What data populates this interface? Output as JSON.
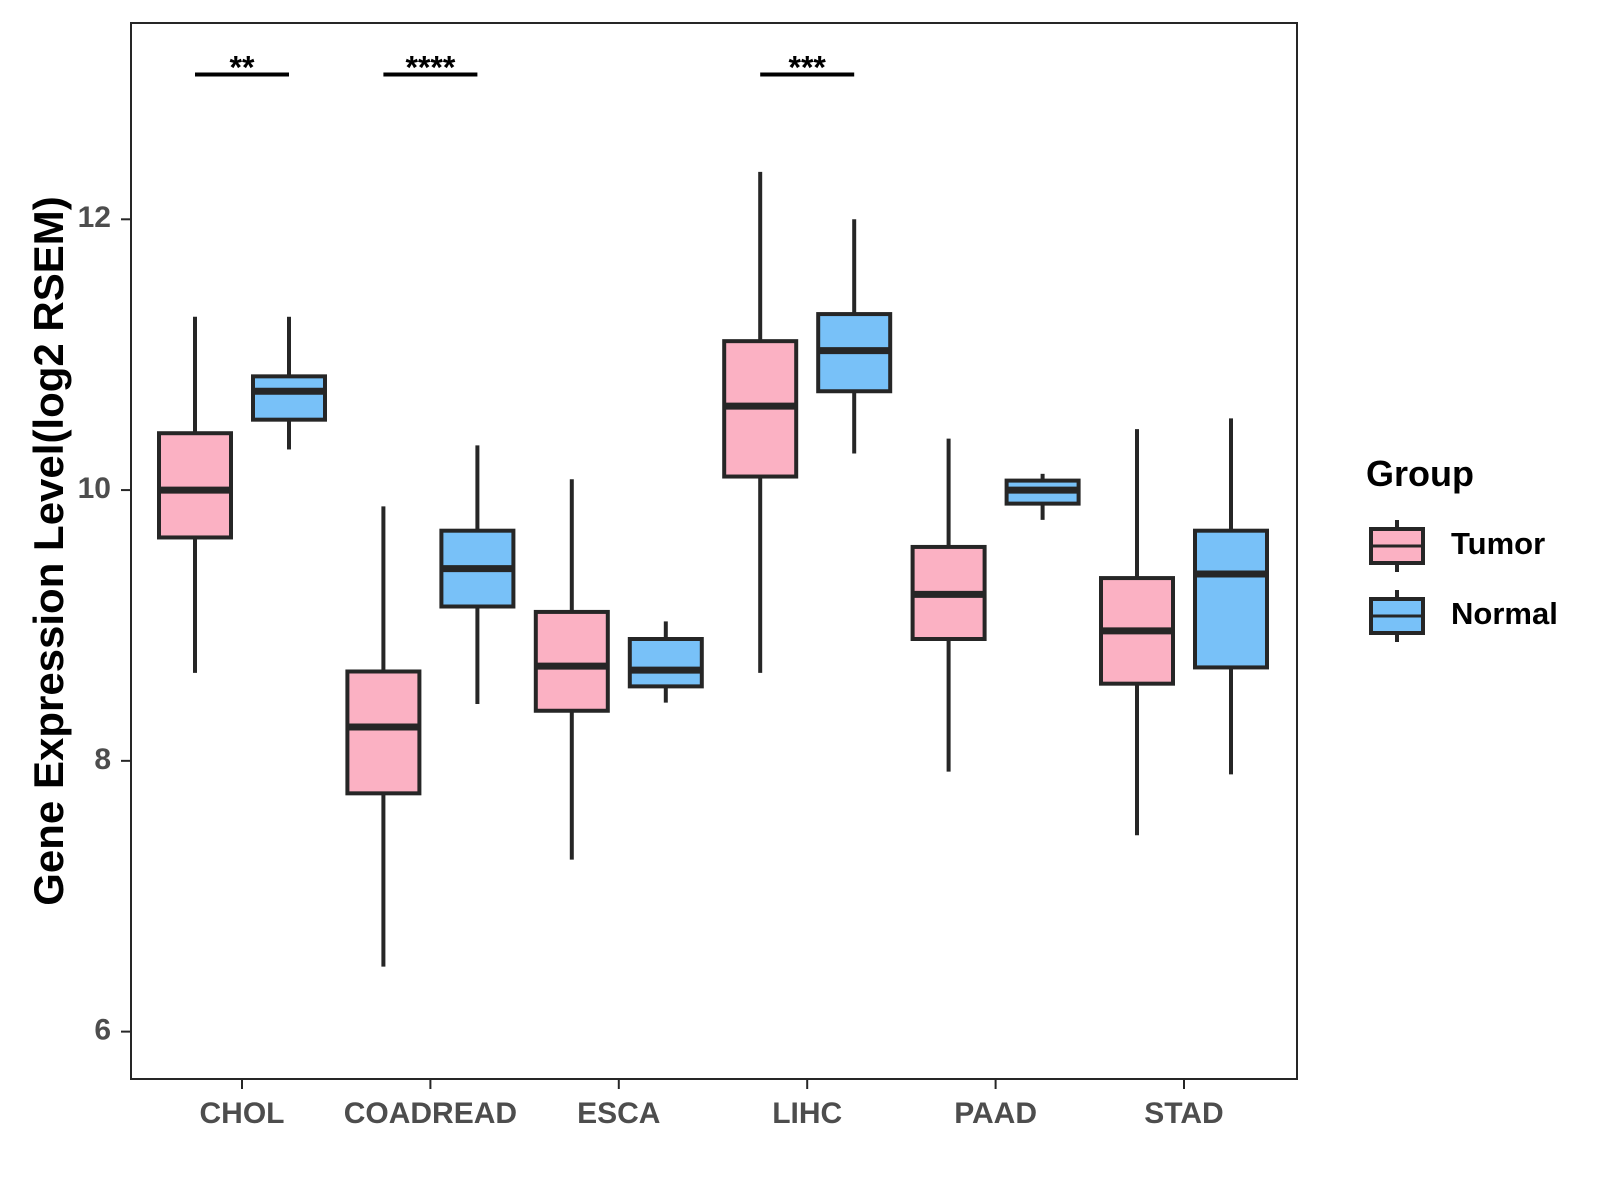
{
  "chart_data": {
    "type": "boxplot",
    "title": "",
    "xlabel": "",
    "ylabel": "Gene Expression Level(log2 RSEM)",
    "ylim": [
      5.65,
      13.45
    ],
    "yticks": [
      6,
      8,
      10,
      12
    ],
    "ytick_labels": [
      "6",
      "8",
      "10",
      "12"
    ],
    "grid": false,
    "categories": [
      "CHOL",
      "COADREAD",
      "ESCA",
      "LIHC",
      "PAAD",
      "STAD"
    ],
    "legend": {
      "title": "Group",
      "position": "right",
      "entries": [
        "Tumor",
        "Normal"
      ]
    },
    "colors": {
      "Tumor": "#FBB1C3",
      "Normal": "#78C1F8",
      "outline": "#262626"
    },
    "series": [
      {
        "name": "Tumor",
        "boxes": [
          {
            "category": "CHOL",
            "whisker_low": 8.65,
            "q1": 9.65,
            "median": 10.0,
            "q3": 10.42,
            "whisker_high": 11.28
          },
          {
            "category": "COADREAD",
            "whisker_low": 6.48,
            "q1": 7.76,
            "median": 8.25,
            "q3": 8.66,
            "whisker_high": 9.88
          },
          {
            "category": "ESCA",
            "whisker_low": 7.27,
            "q1": 8.37,
            "median": 8.7,
            "q3": 9.1,
            "whisker_high": 10.08
          },
          {
            "category": "LIHC",
            "whisker_low": 8.65,
            "q1": 10.1,
            "median": 10.62,
            "q3": 11.1,
            "whisker_high": 12.35
          },
          {
            "category": "PAAD",
            "whisker_low": 7.92,
            "q1": 8.9,
            "median": 9.23,
            "q3": 9.58,
            "whisker_high": 10.38
          },
          {
            "category": "STAD",
            "whisker_low": 7.45,
            "q1": 8.57,
            "median": 8.96,
            "q3": 9.35,
            "whisker_high": 10.45
          }
        ]
      },
      {
        "name": "Normal",
        "boxes": [
          {
            "category": "CHOL",
            "whisker_low": 10.3,
            "q1": 10.52,
            "median": 10.73,
            "q3": 10.84,
            "whisker_high": 11.28
          },
          {
            "category": "COADREAD",
            "whisker_low": 8.42,
            "q1": 9.14,
            "median": 9.42,
            "q3": 9.7,
            "whisker_high": 10.33
          },
          {
            "category": "ESCA",
            "whisker_low": 8.43,
            "q1": 8.55,
            "median": 8.67,
            "q3": 8.9,
            "whisker_high": 9.03
          },
          {
            "category": "LIHC",
            "whisker_low": 10.27,
            "q1": 10.73,
            "median": 11.03,
            "q3": 11.3,
            "whisker_high": 12.0
          },
          {
            "category": "PAAD",
            "whisker_low": 9.78,
            "q1": 9.9,
            "median": 10.0,
            "q3": 10.07,
            "whisker_high": 10.12
          },
          {
            "category": "STAD",
            "whisker_low": 7.9,
            "q1": 8.69,
            "median": 9.38,
            "q3": 9.7,
            "whisker_high": 10.53
          }
        ]
      }
    ],
    "annotations": [
      {
        "category": "CHOL",
        "label": "**",
        "y": 13.07
      },
      {
        "category": "COADREAD",
        "label": "****",
        "y": 13.07
      },
      {
        "category": "LIHC",
        "label": "***",
        "y": 13.07
      }
    ]
  }
}
